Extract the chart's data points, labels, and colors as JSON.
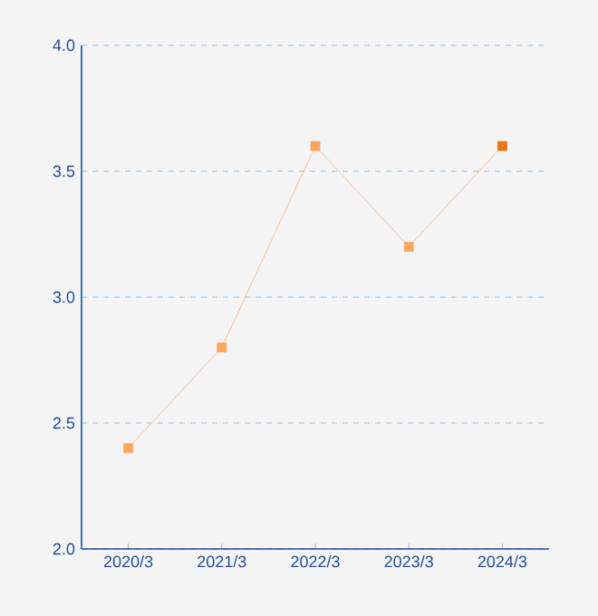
{
  "chart_data": {
    "type": "line",
    "categories": [
      "2020/3",
      "2021/3",
      "2022/3",
      "2023/3",
      "2024/3"
    ],
    "series": [
      {
        "color": "#ffb27a",
        "colors": [
          "#ffa55c",
          "#ffa55c",
          "#ffa55c",
          "#ffa55c",
          "#f07414"
        ],
        "values": [
          2.4,
          2.8,
          3.6,
          3.2,
          3.6
        ]
      }
    ],
    "ylim": [
      2.0,
      4.0
    ],
    "yticks": [
      {
        "value": 2.0,
        "label": "2.0"
      },
      {
        "value": 2.5,
        "label": "2.5"
      },
      {
        "value": 3.0,
        "label": "3.0"
      },
      {
        "value": 3.5,
        "label": "3.5"
      },
      {
        "value": 4.0,
        "label": "4.0"
      }
    ],
    "grid": "y",
    "marker": "square",
    "line_style": "solid"
  }
}
